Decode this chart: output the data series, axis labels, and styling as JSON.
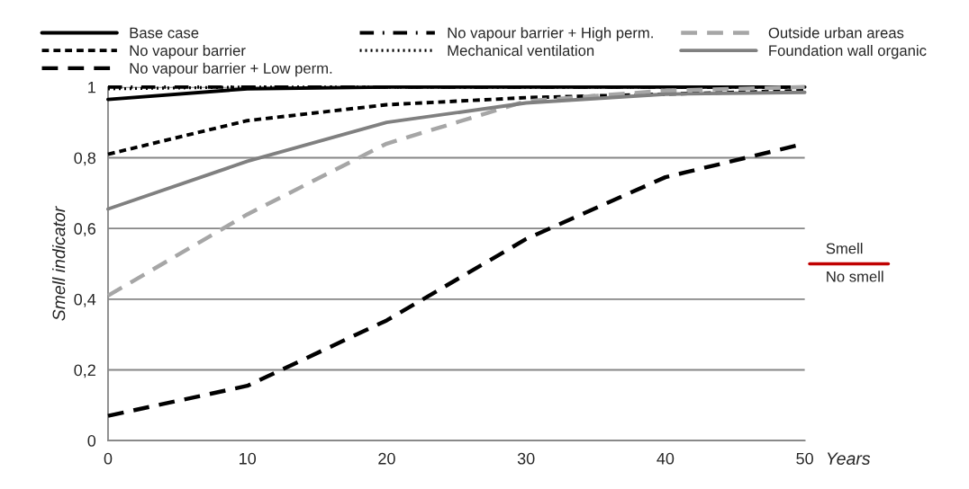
{
  "chart_data": {
    "type": "line",
    "ylabel": "Smell indicator",
    "xlabel": "Years",
    "x": [
      0,
      10,
      20,
      30,
      40,
      50
    ],
    "series": [
      {
        "name": "Base case",
        "color": "#000000",
        "line_style": "solid",
        "values": [
          0.965,
          0.995,
          1,
          1,
          1,
          1
        ]
      },
      {
        "name": "No vapour barrier",
        "color": "#000000",
        "line_style": "dashed",
        "values": [
          0.81,
          0.905,
          0.95,
          0.97,
          0.98,
          0.99
        ]
      },
      {
        "name": "No vapour barrier + Low perm.",
        "color": "#000000",
        "line_style": "longdash",
        "values": [
          0.07,
          0.155,
          0.34,
          0.57,
          0.745,
          0.84
        ]
      },
      {
        "name": "No vapour barrier + High perm.",
        "color": "#000000",
        "line_style": "dashdot",
        "values": [
          1,
          1,
          1,
          1,
          1,
          1
        ]
      },
      {
        "name": "Mechanical ventilation",
        "color": "#000000",
        "line_style": "dotted",
        "values": [
          0.995,
          1,
          1,
          1,
          1,
          1
        ]
      },
      {
        "name": "Outside urban areas",
        "color": "#a6a6a6",
        "line_style": "longdash",
        "values": [
          0.41,
          0.64,
          0.84,
          0.96,
          0.99,
          1
        ]
      },
      {
        "name": "Foundation wall organic",
        "color": "#808080",
        "line_style": "solid",
        "values": [
          0.655,
          0.79,
          0.9,
          0.955,
          0.98,
          0.985
        ]
      }
    ],
    "xlim": [
      0,
      50
    ],
    "xticks": [
      0,
      10,
      20,
      30,
      40,
      50
    ],
    "ylim": [
      0,
      1
    ],
    "yticks": [
      0,
      {
        "value": 0.2,
        "label": "0,2"
      },
      {
        "value": 0.4,
        "label": "0,4"
      },
      {
        "value": 0.6,
        "label": "0,6"
      },
      {
        "value": 0.8,
        "label": "0,8"
      },
      1
    ],
    "grid": "y",
    "legend": "top",
    "marker": "none",
    "ref_lines": [
      {
        "axis": "y",
        "value": 0.5,
        "label": "Smell",
        "color": "#c00000"
      }
    ],
    "annotations": [
      "No smell"
    ]
  }
}
